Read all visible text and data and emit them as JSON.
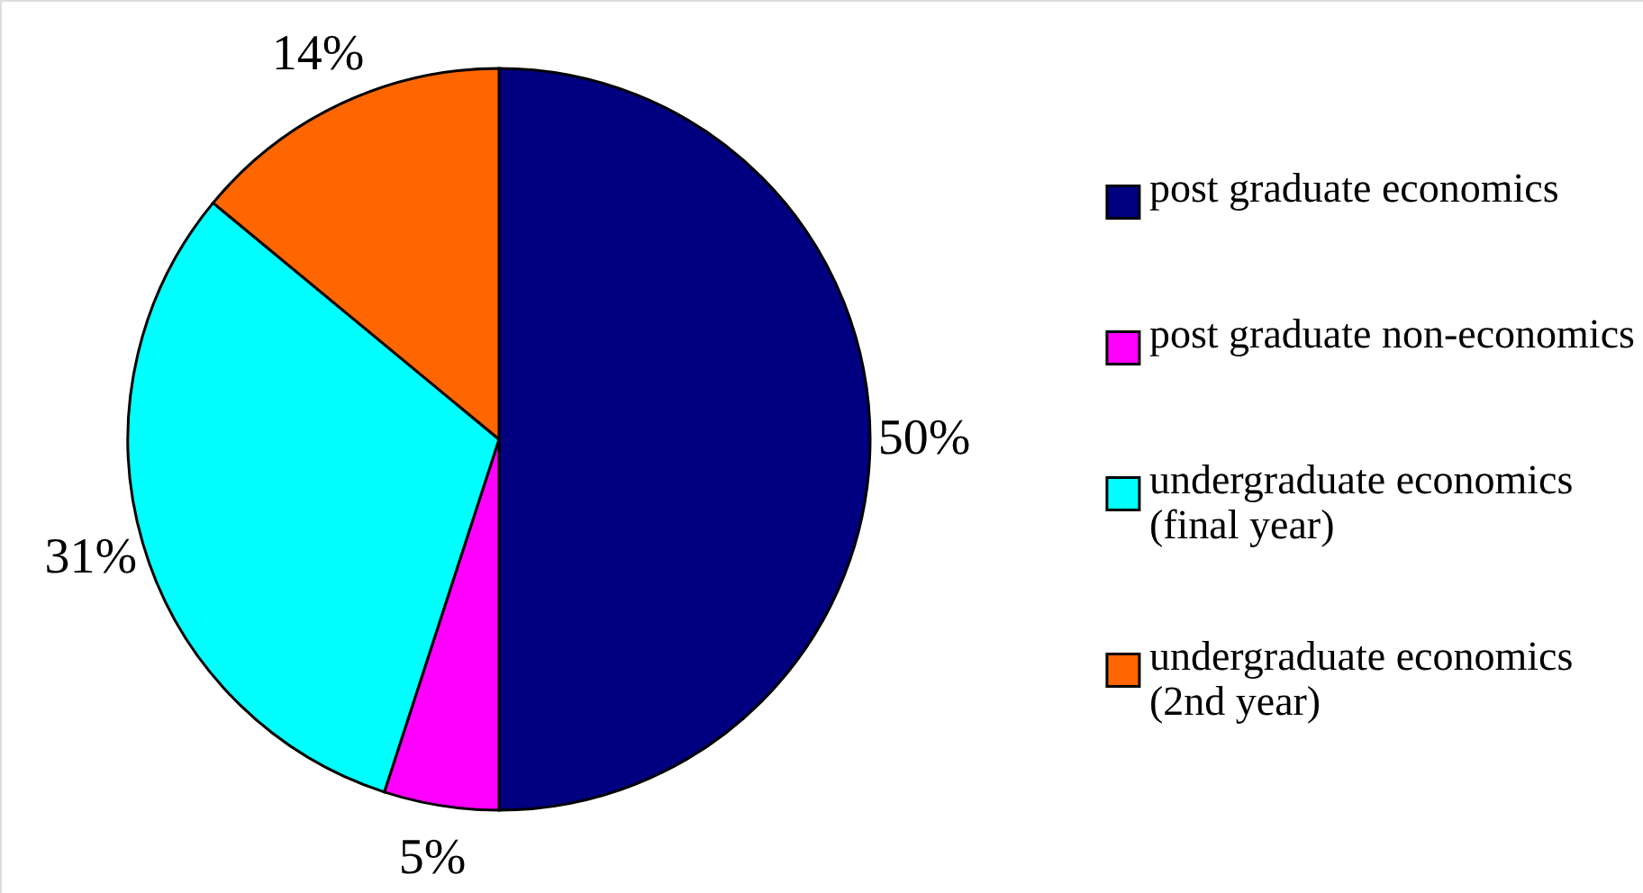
{
  "chart_data": {
    "type": "pie",
    "categories": [
      "post graduate economics",
      "post graduate non-economics",
      "undergraduate economics (final year)",
      "undergraduate economics (2nd year)"
    ],
    "values": [
      50,
      5,
      31,
      14
    ],
    "colors": [
      "#000080",
      "#ff00ff",
      "#00ffff",
      "#ff6600"
    ],
    "value_labels": [
      "50%",
      "5%",
      "31%",
      "14%"
    ],
    "legend": "right"
  }
}
